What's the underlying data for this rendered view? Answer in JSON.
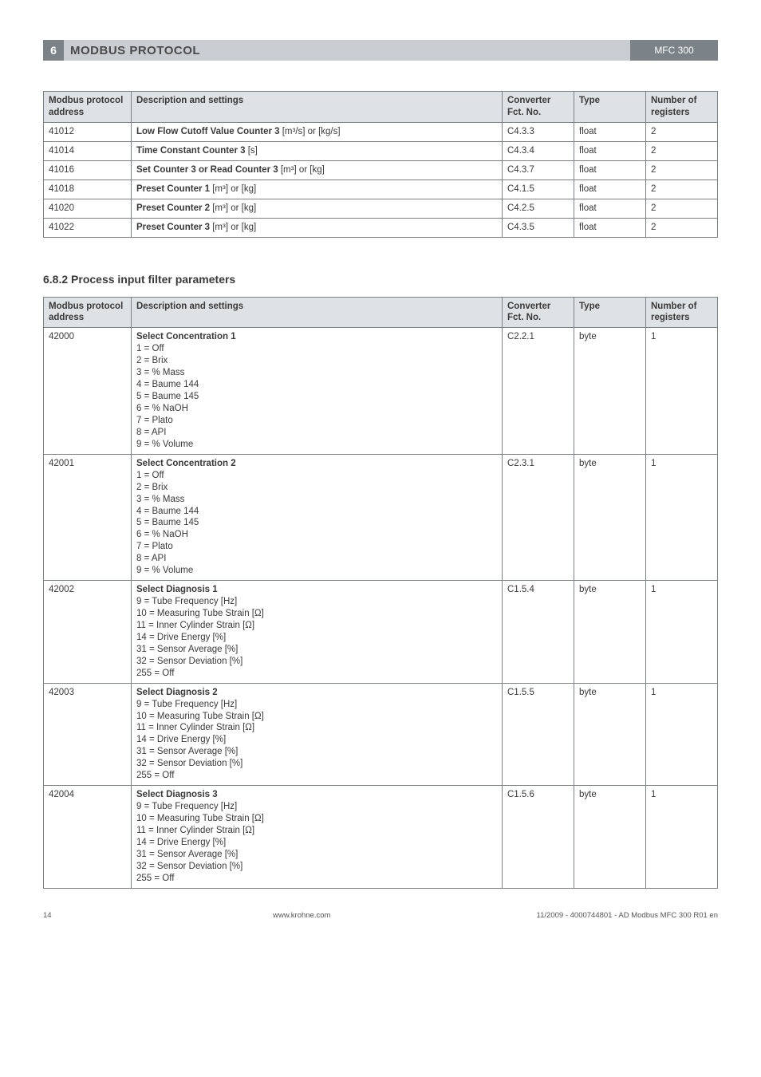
{
  "header": {
    "section_num": "6",
    "title": "MODBUS PROTOCOL",
    "code": "MFC 300"
  },
  "columns": {
    "c1": "Modbus protocol address",
    "c2": "Description and settings",
    "c3": "Converter Fct. No.",
    "c4": "Type",
    "c5": "Number of registers"
  },
  "table1": [
    {
      "addr": "41012",
      "desc_bold": "Low Flow Cutoff Value Counter 3",
      "desc_rest": " [m³/s] or [kg/s]",
      "conv": "C4.3.3",
      "type": "float",
      "num": "2"
    },
    {
      "addr": "41014",
      "desc_bold": "Time Constant Counter 3",
      "desc_rest": " [s]",
      "conv": "C4.3.4",
      "type": "float",
      "num": "2"
    },
    {
      "addr": "41016",
      "desc_bold": "Set Counter 3 or Read Counter 3",
      "desc_rest": " [m³] or [kg]",
      "conv": "C4.3.7",
      "type": "float",
      "num": "2"
    },
    {
      "addr": "41018",
      "desc_bold": "Preset Counter 1",
      "desc_rest": " [m³] or [kg]",
      "conv": "C4.1.5",
      "type": "float",
      "num": "2"
    },
    {
      "addr": "41020",
      "desc_bold": "Preset Counter 2",
      "desc_rest": " [m³] or [kg]",
      "conv": "C4.2.5",
      "type": "float",
      "num": "2"
    },
    {
      "addr": "41022",
      "desc_bold": "Preset Counter 3",
      "desc_rest": " [m³] or [kg]",
      "conv": "C4.3.5",
      "type": "float",
      "num": "2"
    }
  ],
  "section_title": "6.8.2  Process input filter parameters",
  "table2": [
    {
      "addr": "42000",
      "desc_bold": "Select Concentration 1",
      "desc_lines": "1 = Off\n2 = Brix\n3 = % Mass\n4 = Baume 144\n5 = Baume 145\n6 = % NaOH\n7 = Plato\n8 = API\n9 = % Volume",
      "conv": "C2.2.1",
      "type": "byte",
      "num": "1"
    },
    {
      "addr": "42001",
      "desc_bold": "Select Concentration 2",
      "desc_lines": "1 = Off\n2 = Brix\n3 = % Mass\n4 = Baume 144\n5 = Baume 145\n6 = % NaOH\n7 = Plato\n8 = API\n9 = % Volume",
      "conv": "C2.3.1",
      "type": "byte",
      "num": "1"
    },
    {
      "addr": "42002",
      "desc_bold": "Select Diagnosis 1",
      "desc_lines": "9 = Tube Frequency [Hz]\n10 = Measuring Tube Strain [Ω]\n11 = Inner Cylinder Strain [Ω]\n14 = Drive Energy [%]\n31 = Sensor Average [%]\n32 = Sensor Deviation [%]\n255 = Off",
      "conv": "C1.5.4",
      "type": "byte",
      "num": "1"
    },
    {
      "addr": "42003",
      "desc_bold": "Select Diagnosis 2",
      "desc_lines": "9 = Tube Frequency [Hz]\n10 = Measuring Tube Strain [Ω]\n11 = Inner Cylinder Strain [Ω]\n14 = Drive Energy [%]\n31 = Sensor Average [%]\n32 = Sensor Deviation [%]\n255 = Off",
      "conv": "C1.5.5",
      "type": "byte",
      "num": "1"
    },
    {
      "addr": "42004",
      "desc_bold": "Select Diagnosis 3",
      "desc_lines": "9 = Tube Frequency [Hz]\n10 = Measuring Tube Strain [Ω]\n11 = Inner Cylinder Strain [Ω]\n14 = Drive Energy [%]\n31 = Sensor Average [%]\n32 = Sensor Deviation [%]\n255 = Off",
      "conv": "C1.5.6",
      "type": "byte",
      "num": "1"
    }
  ],
  "footer": {
    "page": "14",
    "mid": "www.krohne.com",
    "right": "11/2009 - 4000744801 - AD Modbus MFC 300 R01 en"
  }
}
